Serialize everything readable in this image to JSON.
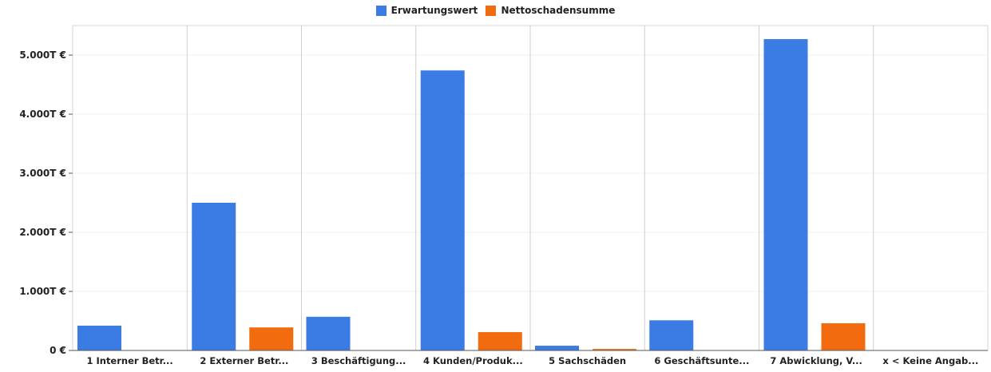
{
  "chart_data": {
    "type": "bar",
    "title": "",
    "xlabel": "",
    "ylabel": "",
    "ylim": [
      0,
      5500
    ],
    "yticks": [
      0,
      1000,
      2000,
      3000,
      4000,
      5000
    ],
    "ytick_labels": [
      "0 €",
      "1.000T €",
      "2.000T €",
      "3.000T €",
      "4.000T €",
      "5.000T €"
    ],
    "categories": [
      "1 Interner Betr...",
      "2 Externer Betr...",
      "3 Beschäftigung...",
      "4 Kunden/Produk...",
      "5 Sachschäden",
      "6 Geschäftsunte...",
      "7 Abwicklung, V...",
      "x < Keine Angab..."
    ],
    "series": [
      {
        "name": "Erwartungswert",
        "color": "#3b7be4",
        "values": [
          420,
          2500,
          570,
          4740,
          80,
          510,
          5270,
          0
        ]
      },
      {
        "name": "Nettoschadensumme",
        "color": "#f26b0f",
        "values": [
          0,
          390,
          0,
          310,
          25,
          0,
          460,
          0
        ]
      }
    ],
    "legend_position": "top-center",
    "grid": true
  }
}
